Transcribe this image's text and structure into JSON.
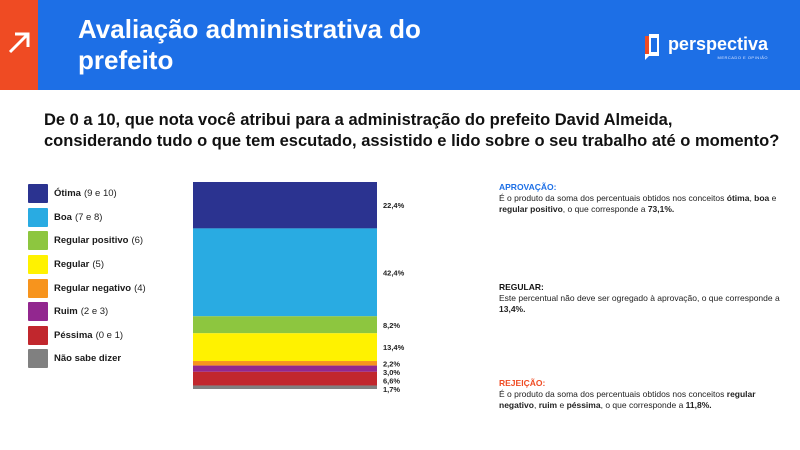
{
  "header": {
    "title": "Avaliação administrativa do prefeito",
    "logo_text": "perspectiva",
    "logo_subtext": "MERCADO E OPINIÃO"
  },
  "question": "De 0 a 10, que nota você atribui para a administração do prefeito David Almeida, considerando tudo o que tem escutado, assistido e lido sobre o seu trabalho até o momento?",
  "colors": {
    "orange": "#ef4b23",
    "header_blue": "#1d6fe6"
  },
  "legend": [
    {
      "name": "Ótima",
      "range": "(9 e 10)",
      "color": "#2b3390"
    },
    {
      "name": "Boa",
      "range": "(7 e 8)",
      "color": "#29abe2"
    },
    {
      "name": "Regular positivo",
      "range": "(6)",
      "color": "#8dc63f"
    },
    {
      "name": "Regular",
      "range": "(5)",
      "color": "#fff200"
    },
    {
      "name": "Regular negativo",
      "range": "(4)",
      "color": "#f7941d"
    },
    {
      "name": "Ruim",
      "range": "(2 e 3)",
      "color": "#92278f"
    },
    {
      "name": "Péssima",
      "range": "(0 e 1)",
      "color": "#c1272d"
    },
    {
      "name": "Não sabe dizer",
      "range": "",
      "color": "#808080"
    }
  ],
  "chart_data": {
    "type": "bar",
    "stacked": true,
    "categories": [
      "Ótima",
      "Boa",
      "Regular positivo",
      "Regular",
      "Regular negativo",
      "Ruim",
      "Péssima",
      "Não sabe dizer"
    ],
    "values": [
      22.4,
      42.4,
      8.2,
      13.4,
      2.2,
      3.0,
      6.6,
      1.7
    ],
    "labels": [
      "22,4%",
      "42,4%",
      "8,2%",
      "13,4%",
      "2,2%",
      "3,0%",
      "6,6%",
      "1,7%"
    ],
    "colors": [
      "#2b3390",
      "#29abe2",
      "#8dc63f",
      "#fff200",
      "#f7941d",
      "#92278f",
      "#c1272d",
      "#808080"
    ]
  },
  "notes": {
    "aprovacao": {
      "title": "APROVAÇÃO:",
      "t1": "É o produto da soma dos percentuais obtidos nos conceitos ",
      "b1": "ótima",
      "t2": ", ",
      "b2": "boa",
      "t3": " e ",
      "b3": "regular positivo",
      "t4": ", o que corresponde a ",
      "b4": "73,1%.",
      "t5": ""
    },
    "regular": {
      "title": "REGULAR:",
      "t1": "Este percentual não deve ser ogregado à aprovação, o que corresponde a ",
      "b1": "13,4%."
    },
    "rejeicao": {
      "title": "REJEIÇÃO:",
      "t1": "É o produto da soma dos percentuais obtidos nos conceitos ",
      "b1": "regular negativo",
      "t2": ", ",
      "b2": "ruim",
      "t3": " e ",
      "b3": "péssima",
      "t4": ", o que corresponde a ",
      "b4": "11,8%."
    }
  }
}
